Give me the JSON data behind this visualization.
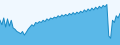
{
  "values": [
    55,
    45,
    60,
    40,
    58,
    42,
    55,
    38,
    35,
    30,
    28,
    25,
    30,
    22,
    28,
    35,
    40,
    45,
    42,
    50,
    48,
    52,
    50,
    55,
    52,
    58,
    55,
    60,
    58,
    62,
    60,
    65,
    62,
    67,
    64,
    68,
    65,
    70,
    67,
    72,
    68,
    73,
    70,
    75,
    72,
    78,
    74,
    80,
    76,
    82,
    78,
    84,
    80,
    86,
    82,
    88,
    85,
    90,
    20,
    15,
    55,
    50,
    65,
    60,
    70
  ],
  "line_color": "#1a8ac4",
  "fill_color": "#5ab8e8",
  "background_color": "#f0f8ff",
  "ylim_min": 0,
  "ylim_max": 100
}
